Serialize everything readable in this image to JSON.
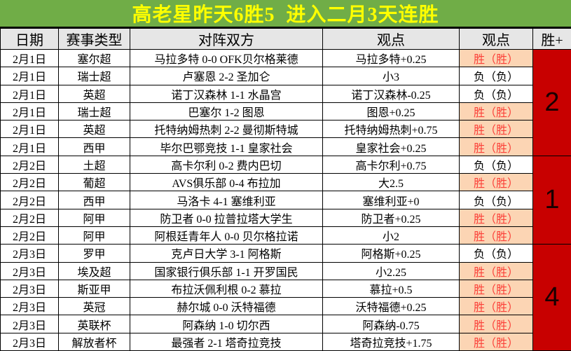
{
  "title": "高老星昨天6胜5  进入二月3天连胜",
  "colors": {
    "title_bg": "#70AD47",
    "title_text": "#FFFF00",
    "header_bg": "#E6E6E6",
    "win_bg": "#FCD5B4",
    "win_text": "#FB4139",
    "group_bg": "#C80000"
  },
  "header": {
    "date": "日期",
    "league": "赛事类型",
    "match": "对阵双方",
    "viewpoint": "观点",
    "result": "观点",
    "win_plus": "胜+"
  },
  "rows": [
    {
      "date": "2月1日",
      "league": "塞尔超",
      "match": "马拉多特 0-0 OFK贝尔格莱德",
      "viewpoint": "马拉多特+0.25",
      "result": "胜（胜）",
      "win": true
    },
    {
      "date": "2月1日",
      "league": "瑞士超",
      "match": "卢塞恩 2-2 圣加仑",
      "viewpoint": "小3",
      "result": "负（负）",
      "win": false
    },
    {
      "date": "2月1日",
      "league": "英超",
      "match": "诺丁汉森林 1-1 水晶宫",
      "viewpoint": "诺丁汉森林-0.25",
      "result": "负（负）",
      "win": false
    },
    {
      "date": "2月1日",
      "league": "瑞士超",
      "match": "巴塞尔 1-2 图恩",
      "viewpoint": "图恩+0.25",
      "result": "胜（胜）",
      "win": true
    },
    {
      "date": "2月1日",
      "league": "英超",
      "match": "托特纳姆热刺 2-2 曼彻斯特城",
      "viewpoint": "托特纳姆热刺+0.75",
      "result": "胜（胜）",
      "win": true
    },
    {
      "date": "2月1日",
      "league": "西甲",
      "match": "毕尔巴鄂竞技 1-1 皇家社会",
      "viewpoint": "皇家社会+0.25",
      "result": "胜（胜）",
      "win": true
    },
    {
      "date": "2月2日",
      "league": "土超",
      "match": "高卡尔利 0-2 费内巴切",
      "viewpoint": "高卡尔利+0.75",
      "result": "负（负）",
      "win": false
    },
    {
      "date": "2月2日",
      "league": "葡超",
      "match": "AVS俱乐部 0-4 布拉加",
      "viewpoint": "大2.5",
      "result": "胜（胜）",
      "win": true
    },
    {
      "date": "2月2日",
      "league": "西甲",
      "match": "马洛卡 4-1 塞维利亚",
      "viewpoint": "塞维利亚+0",
      "result": "负（负）",
      "win": false
    },
    {
      "date": "2月2日",
      "league": "阿甲",
      "match": "防卫者 0-0 拉普拉塔大学生",
      "viewpoint": "防卫者+0.25",
      "result": "胜（胜）",
      "win": true
    },
    {
      "date": "2月2日",
      "league": "阿甲",
      "match": "阿根廷青年人 0-0 贝尔格拉诺",
      "viewpoint": "小2",
      "result": "胜（胜）",
      "win": true
    },
    {
      "date": "2月3日",
      "league": "罗甲",
      "match": "克卢日大学 3-1 阿格斯",
      "viewpoint": "阿格斯+0.25",
      "result": "负（负）",
      "win": false
    },
    {
      "date": "2月3日",
      "league": "埃及超",
      "match": "国家银行俱乐部 1-1 开罗国民",
      "viewpoint": "小2.25",
      "result": "胜（胜）",
      "win": true
    },
    {
      "date": "2月3日",
      "league": "斯亚甲",
      "match": "布拉沃佩利根 0-2 慕拉",
      "viewpoint": "慕拉+0.5",
      "result": "胜（胜）",
      "win": true
    },
    {
      "date": "2月3日",
      "league": "英冠",
      "match": "赫尔城 0-0 沃特福德",
      "viewpoint": "沃特福德+0.25",
      "result": "胜（胜）",
      "win": true
    },
    {
      "date": "2月3日",
      "league": "英联杯",
      "match": "阿森纳 1-0 切尔西",
      "viewpoint": "阿森纳-0.75",
      "result": "胜（胜）",
      "win": true
    },
    {
      "date": "2月3日",
      "league": "解放者杯",
      "match": "最强者 2-1 塔奇拉竞技",
      "viewpoint": "塔奇拉竞技+1.75",
      "result": "胜（胜）",
      "win": true
    }
  ],
  "win_groups": [
    {
      "value": "2",
      "row_span": 6
    },
    {
      "value": "1",
      "row_span": 5
    },
    {
      "value": "4",
      "row_span": 6
    }
  ]
}
